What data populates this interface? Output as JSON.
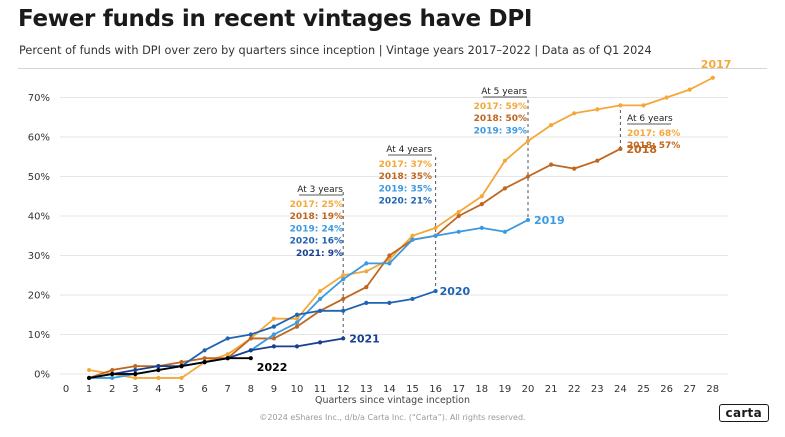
{
  "header": {
    "title": "Fewer funds in recent vintages have DPI",
    "subtitle": "Percent of funds with DPI over zero by quarters since inception  |  Vintage years 2017–2022  |  Data as of Q1 2024"
  },
  "footer": {
    "copyright": "©2024 eShares Inc., d/b/a Carta Inc. (“Carta”). All rights reserved.",
    "logo": "carta"
  },
  "chart_data": {
    "type": "line",
    "title": "Fewer funds in recent vintages have DPI",
    "subtitle": "Percent of funds with DPI over zero by quarters since inception  |  Vintage years 2017–2022  |  Data as of Q1 2024",
    "xlabel": "Quarters since vintage inception",
    "ylabel": "",
    "xlim": [
      0,
      28
    ],
    "ylim": [
      0,
      70
    ],
    "x_ticks": [
      0,
      1,
      2,
      3,
      4,
      5,
      6,
      7,
      8,
      9,
      10,
      11,
      12,
      13,
      14,
      15,
      16,
      17,
      18,
      19,
      20,
      21,
      22,
      23,
      24,
      25,
      26,
      27,
      28
    ],
    "y_ticks": [
      0,
      10,
      20,
      30,
      40,
      50,
      60,
      70
    ],
    "y_tick_labels": [
      "0%",
      "10%",
      "20%",
      "30%",
      "40%",
      "50%",
      "60%",
      "70%"
    ],
    "grid": "horizontal",
    "series": [
      {
        "name": "2017",
        "color": "#f5a83a",
        "values": [
          [
            1,
            1
          ],
          [
            2,
            0
          ],
          [
            3,
            -1
          ],
          [
            4,
            -1
          ],
          [
            5,
            -1
          ],
          [
            6,
            3
          ],
          [
            7,
            5
          ],
          [
            8,
            9
          ],
          [
            9,
            14
          ],
          [
            10,
            14
          ],
          [
            11,
            21
          ],
          [
            12,
            25
          ],
          [
            13,
            26
          ],
          [
            14,
            29
          ],
          [
            15,
            35
          ],
          [
            16,
            37
          ],
          [
            17,
            41
          ],
          [
            18,
            45
          ],
          [
            19,
            54
          ],
          [
            20,
            59
          ],
          [
            21,
            63
          ],
          [
            22,
            66
          ],
          [
            23,
            67
          ],
          [
            24,
            68
          ],
          [
            25,
            68
          ],
          [
            26,
            70
          ],
          [
            27,
            72
          ],
          [
            28,
            75
          ]
        ]
      },
      {
        "name": "2018",
        "color": "#c0661f",
        "values": [
          [
            1,
            -1
          ],
          [
            2,
            1
          ],
          [
            3,
            2
          ],
          [
            4,
            2
          ],
          [
            5,
            3
          ],
          [
            6,
            4
          ],
          [
            7,
            4
          ],
          [
            8,
            9
          ],
          [
            9,
            9
          ],
          [
            10,
            12
          ],
          [
            11,
            16
          ],
          [
            12,
            19
          ],
          [
            13,
            22
          ],
          [
            14,
            30
          ],
          [
            15,
            34
          ],
          [
            16,
            35
          ],
          [
            17,
            40
          ],
          [
            18,
            43
          ],
          [
            19,
            47
          ],
          [
            20,
            50
          ],
          [
            21,
            53
          ],
          [
            22,
            52
          ],
          [
            23,
            54
          ],
          [
            24,
            57
          ]
        ]
      },
      {
        "name": "2019",
        "color": "#3b9ae1",
        "values": [
          [
            1,
            -1
          ],
          [
            2,
            -1
          ],
          [
            3,
            0
          ],
          [
            4,
            1
          ],
          [
            5,
            2
          ],
          [
            6,
            3
          ],
          [
            7,
            4
          ],
          [
            8,
            6
          ],
          [
            9,
            10
          ],
          [
            10,
            13
          ],
          [
            11,
            19
          ],
          [
            12,
            24
          ],
          [
            13,
            28
          ],
          [
            14,
            28
          ],
          [
            15,
            34
          ],
          [
            16,
            35
          ],
          [
            17,
            36
          ],
          [
            18,
            37
          ],
          [
            19,
            36
          ],
          [
            20,
            39
          ]
        ]
      },
      {
        "name": "2020",
        "color": "#1f63b3",
        "values": [
          [
            1,
            -1
          ],
          [
            2,
            0
          ],
          [
            3,
            0
          ],
          [
            4,
            1
          ],
          [
            5,
            2
          ],
          [
            6,
            6
          ],
          [
            7,
            9
          ],
          [
            8,
            10
          ],
          [
            9,
            12
          ],
          [
            10,
            15
          ],
          [
            11,
            16
          ],
          [
            12,
            16
          ],
          [
            13,
            18
          ],
          [
            14,
            18
          ],
          [
            15,
            19
          ],
          [
            16,
            21
          ]
        ]
      },
      {
        "name": "2021",
        "color": "#17408f",
        "values": [
          [
            1,
            -1
          ],
          [
            2,
            0
          ],
          [
            3,
            1
          ],
          [
            4,
            2
          ],
          [
            5,
            2
          ],
          [
            6,
            3
          ],
          [
            7,
            4
          ],
          [
            8,
            6
          ],
          [
            9,
            7
          ],
          [
            10,
            7
          ],
          [
            11,
            8
          ],
          [
            12,
            9
          ]
        ]
      },
      {
        "name": "2022",
        "color": "#000000",
        "values": [
          [
            1,
            -1
          ],
          [
            2,
            0
          ],
          [
            3,
            0
          ],
          [
            4,
            1
          ],
          [
            5,
            2
          ],
          [
            6,
            3
          ],
          [
            7,
            4
          ],
          [
            8,
            4
          ]
        ]
      }
    ],
    "annotations": [
      {
        "title": "At 3 years",
        "quarter": 12,
        "labels": [
          {
            "text": "2017: 25%",
            "color": "#f5a83a"
          },
          {
            "text": "2018: 19%",
            "color": "#c0661f"
          },
          {
            "text": "2019: 24%",
            "color": "#3b9ae1"
          },
          {
            "text": "2020: 16%",
            "color": "#1f63b3"
          },
          {
            "text": "2021: 9%",
            "color": "#17408f"
          }
        ]
      },
      {
        "title": "At 4 years",
        "quarter": 16,
        "labels": [
          {
            "text": "2017: 37%",
            "color": "#f5a83a"
          },
          {
            "text": "2018: 35%",
            "color": "#c0661f"
          },
          {
            "text": "2019: 35%",
            "color": "#3b9ae1"
          },
          {
            "text": "2020: 21%",
            "color": "#1f63b3"
          }
        ]
      },
      {
        "title": "At 5 years",
        "quarter": 20,
        "labels": [
          {
            "text": "2017: 59%",
            "color": "#f5a83a"
          },
          {
            "text": "2018: 50%",
            "color": "#c0661f"
          },
          {
            "text": "2019: 39%",
            "color": "#3b9ae1"
          }
        ]
      },
      {
        "title": "At 6 years",
        "quarter": 24,
        "labels": [
          {
            "text": "2017: 68%",
            "color": "#f5a83a"
          },
          {
            "text": "2018: 57%",
            "color": "#c0661f"
          }
        ]
      }
    ]
  }
}
